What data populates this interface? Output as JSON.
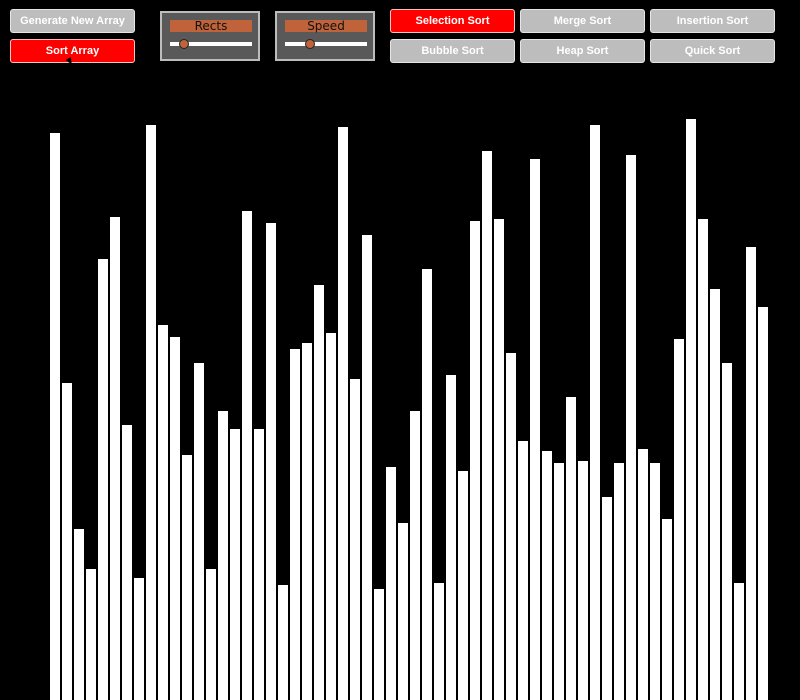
{
  "toolbar": {
    "generate_label": "Generate New Array",
    "sort_label": "Sort Array"
  },
  "sliders": {
    "rects": {
      "label": "Rects",
      "value": 0.17
    },
    "speed": {
      "label": "Speed",
      "value": 0.3
    }
  },
  "algorithms": {
    "selection": "Selection Sort",
    "merge": "Merge Sort",
    "insertion": "Insertion Sort",
    "bubble": "Bubble Sort",
    "heap": "Heap Sort",
    "quick": "Quick Sort",
    "active": "selection"
  },
  "colors": {
    "background": "#000000",
    "bar": "#ffffff",
    "active_button": "#ff0000",
    "inactive_button": "#bdbdbd",
    "slider_accent": "#c0633a"
  },
  "array": {
    "max_value": 700,
    "values": [
      567,
      317,
      171,
      131,
      441,
      483,
      275,
      122,
      575,
      375,
      363,
      245,
      337,
      131,
      289,
      271,
      489,
      271,
      477,
      115,
      351,
      357,
      415,
      367,
      573,
      321,
      465,
      111,
      233,
      177,
      289,
      431,
      117,
      325,
      229,
      479,
      549,
      481,
      347,
      259,
      541,
      249,
      237,
      303,
      239,
      575,
      203,
      237,
      545,
      251,
      237,
      181,
      361,
      581,
      481,
      411,
      337,
      117,
      453,
      393
    ]
  }
}
